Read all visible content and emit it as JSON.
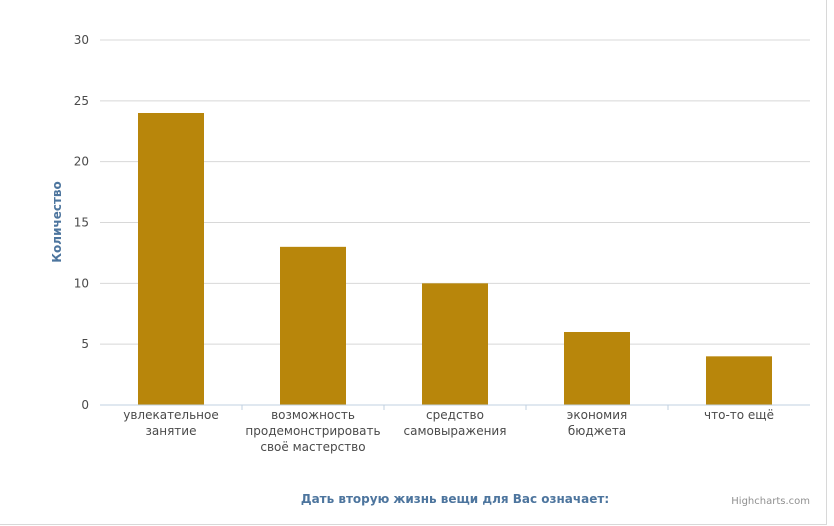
{
  "chart_data": {
    "type": "bar",
    "categories": [
      [
        "увлекательное",
        "занятие"
      ],
      [
        "возможность",
        "продемонстрировать",
        "своё мастерство"
      ],
      [
        "средство",
        "самовыражения"
      ],
      [
        "экономия",
        "бюджета"
      ],
      [
        "что-то ещё"
      ]
    ],
    "values": [
      24,
      13,
      10,
      6,
      4
    ],
    "title": "",
    "xlabel": "Дать вторую жизнь вещи для Вас означает:",
    "ylabel": "Количество",
    "ylim": [
      0,
      30
    ],
    "yticks": [
      0,
      5,
      10,
      15,
      20,
      25,
      30
    ],
    "grid": true,
    "bar_color": "#b8860b"
  },
  "credits": "Highcharts.com"
}
